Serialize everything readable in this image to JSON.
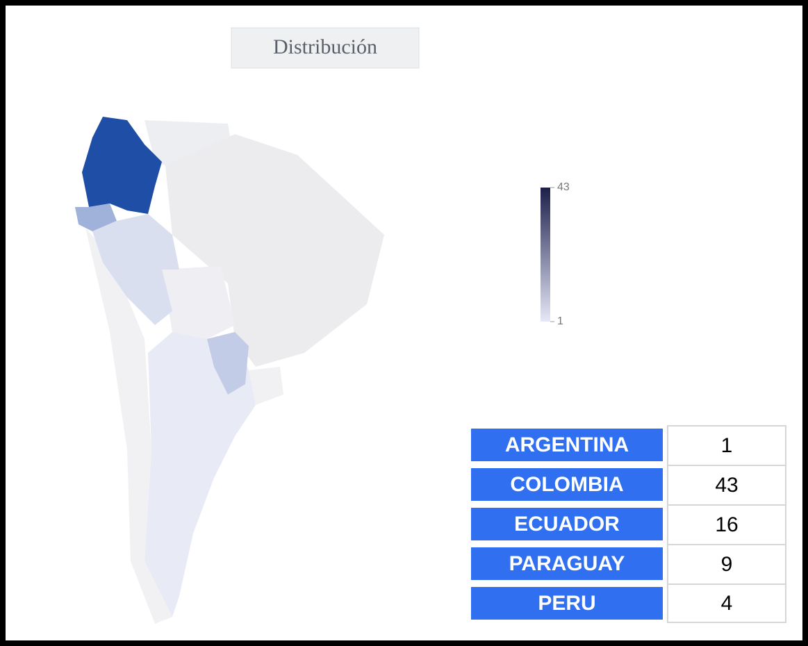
{
  "title": "Distribución",
  "legend": {
    "ticks": [
      43,
      1
    ]
  },
  "table": {
    "rows": [
      [
        "ARGENTINA",
        1
      ],
      [
        "COLOMBIA",
        43
      ],
      [
        "ECUADOR",
        16
      ],
      [
        "PARAGUAY",
        9
      ],
      [
        "PERU",
        4
      ]
    ]
  }
}
